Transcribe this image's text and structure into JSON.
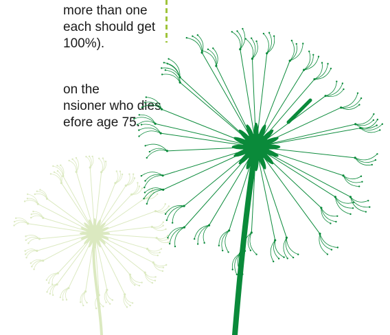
{
  "paragraph_1": {
    "lines": [
      "more than one",
      "each should get",
      "100%)."
    ]
  },
  "paragraph_2": {
    "lines": [
      "on the",
      "nsioner who dies",
      "efore age 75."
    ]
  },
  "colors": {
    "dandelion_dark": "#0a8a3a",
    "dandelion_light": "#dbe9c0",
    "divider": "#9fc43a",
    "text": "#1a1a1a"
  }
}
